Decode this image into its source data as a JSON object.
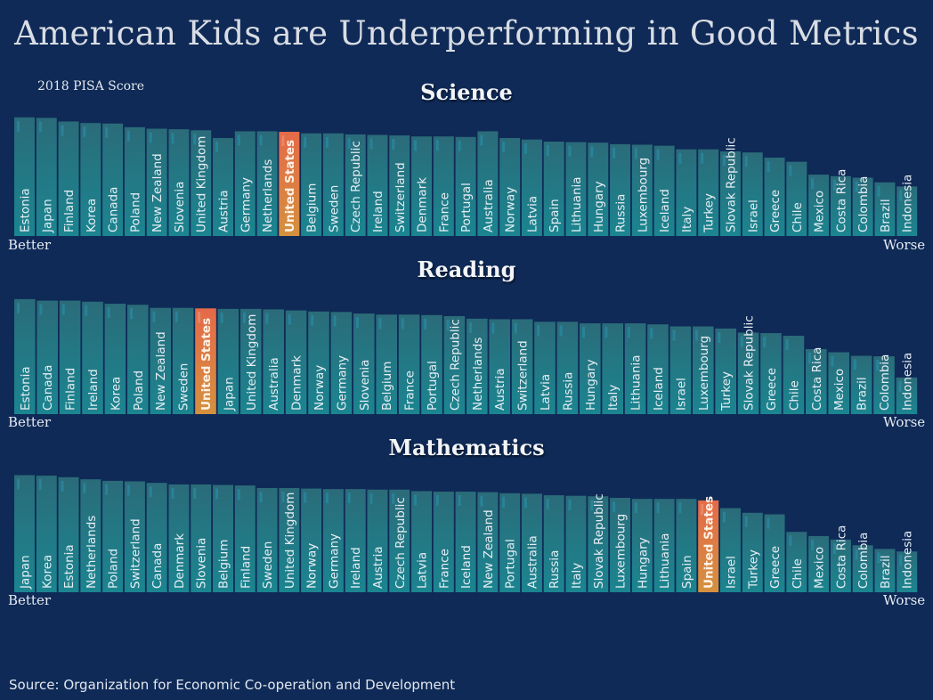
{
  "header": {
    "title": "American Kids are Underperforming in Good Metrics",
    "score_label": "2018 PISA Score"
  },
  "labels": {
    "better": "Better",
    "worse": "Worse"
  },
  "source": "Source: Organization for Economic Co-operation and Development",
  "colors": {
    "background": "#0f2a57",
    "bar": "#1f7c82",
    "bar_top": "#2a6a78",
    "highlight": "#e9774f"
  },
  "highlight_country": "United States",
  "chart_data": [
    {
      "type": "bar",
      "title": "Science",
      "orientation": "vertical",
      "categories": [
        "Estonia",
        "Japan",
        "Finland",
        "Korea",
        "Canada",
        "Poland",
        "New Zealand",
        "Slovenia",
        "United Kingdom",
        "Austria",
        "Germany",
        "Netherlands",
        "United States",
        "Belgium",
        "Sweden",
        "Czech Republic",
        "Ireland",
        "Switzerland",
        "Denmark",
        "France",
        "Portugal",
        "Australia",
        "Norway",
        "Latvia",
        "Spain",
        "Lithuania",
        "Hungary",
        "Russia",
        "Luxembourg",
        "Iceland",
        "Italy",
        "Turkey",
        "Slovak Republic",
        "Israel",
        "Greece",
        "Chile",
        "Mexico",
        "Costa Rica",
        "Colombia",
        "Brazil",
        "Indonesia"
      ],
      "values": [
        530,
        529,
        522,
        519,
        518,
        511,
        508,
        507,
        505,
        490,
        503,
        503,
        502,
        499,
        499,
        497,
        496,
        495,
        493,
        493,
        492,
        503,
        490,
        487,
        483,
        482,
        481,
        478,
        477,
        475,
        468,
        468,
        464,
        462,
        452,
        444,
        419,
        416,
        413,
        404,
        396
      ],
      "ylim": [
        300,
        540
      ],
      "axis_visible": false
    },
    {
      "type": "bar",
      "title": "Reading",
      "orientation": "vertical",
      "categories": [
        "Estonia",
        "Canada",
        "Finland",
        "Ireland",
        "Korea",
        "Poland",
        "New Zealand",
        "Sweden",
        "United States",
        "Japan",
        "United Kingdom",
        "Australia",
        "Denmark",
        "Norway",
        "Germany",
        "Slovenia",
        "Belgium",
        "France",
        "Portugal",
        "Czech Republic",
        "Netherlands",
        "Austria",
        "Switzerland",
        "Latvia",
        "Russia",
        "Hungary",
        "Italy",
        "Lithuania",
        "Iceland",
        "Israel",
        "Luxembourg",
        "Turkey",
        "Slovak Republic",
        "Greece",
        "Chile",
        "Costa Rica",
        "Mexico",
        "Brazil",
        "Colombia",
        "Indonesia"
      ],
      "values": [
        523,
        520,
        520,
        518,
        514,
        512,
        506,
        506,
        505,
        504,
        504,
        503,
        501,
        499,
        498,
        495,
        493,
        493,
        492,
        490,
        485,
        484,
        484,
        479,
        479,
        476,
        476,
        476,
        474,
        470,
        470,
        466,
        458,
        457,
        452,
        426,
        420,
        413,
        412,
        371
      ],
      "ylim": [
        300,
        540
      ],
      "axis_visible": false
    },
    {
      "type": "bar",
      "title": "Mathematics",
      "orientation": "vertical",
      "categories": [
        "Japan",
        "Korea",
        "Estonia",
        "Netherlands",
        "Poland",
        "Switzerland",
        "Canada",
        "Denmark",
        "Slovenia",
        "Belgium",
        "Finland",
        "Sweden",
        "United Kingdom",
        "Norway",
        "Germany",
        "Ireland",
        "Austria",
        "Czech Republic",
        "Latvia",
        "France",
        "Iceland",
        "New Zealand",
        "Portugal",
        "Australia",
        "Russia",
        "Italy",
        "Slovak Republic",
        "Luxembourg",
        "Hungary",
        "Lithuania",
        "Spain",
        "United States",
        "Israel",
        "Turkey",
        "Greece",
        "Chile",
        "Mexico",
        "Costa Rica",
        "Colombia",
        "Brazil",
        "Indonesia"
      ],
      "values": [
        527,
        526,
        523,
        519,
        516,
        515,
        512,
        509,
        509,
        508,
        507,
        502,
        502,
        501,
        500,
        500,
        499,
        499,
        496,
        495,
        495,
        494,
        492,
        491,
        488,
        487,
        486,
        483,
        481,
        481,
        481,
        478,
        463,
        454,
        451,
        417,
        409,
        402,
        391,
        384,
        379
      ],
      "ylim": [
        300,
        540
      ],
      "axis_visible": false
    }
  ]
}
